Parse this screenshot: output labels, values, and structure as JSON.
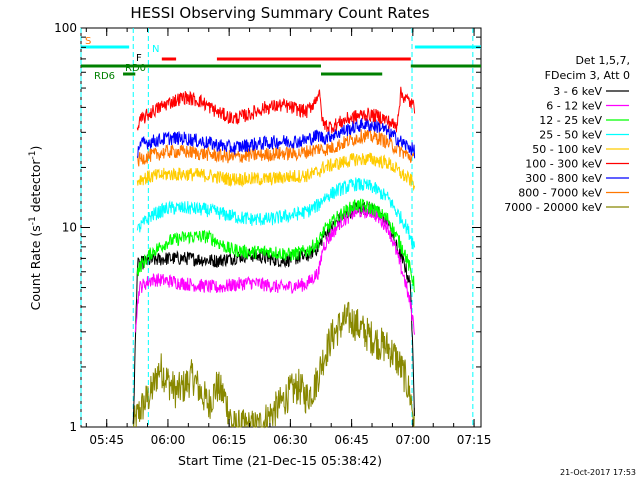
{
  "chart_data": {
    "type": "line",
    "title": "HESSI Observing Summary Count Rates",
    "xlabel": "Start Time (21-Dec-15 05:38:42)",
    "ylabel": "Count Rate (s⁻¹ detector⁻¹)",
    "ylabel_parts": {
      "main": "Count Rate (s",
      "exp1": "-1",
      "mid": " detector",
      "exp2": "-1",
      "end": ")"
    },
    "y_scale": "log",
    "xlim_minutes": [
      338.7,
      436.7
    ],
    "ylim": [
      1,
      100
    ],
    "x_ticks": [
      {
        "minute": 345,
        "label": "05:45"
      },
      {
        "minute": 360,
        "label": "06:00"
      },
      {
        "minute": 375,
        "label": "06:15"
      },
      {
        "minute": 390,
        "label": "06:30"
      },
      {
        "minute": 405,
        "label": "06:45"
      },
      {
        "minute": 420,
        "label": "07:00"
      },
      {
        "minute": 435,
        "label": "07:15"
      }
    ],
    "y_ticks": [
      {
        "value": 1,
        "label": "1"
      },
      {
        "value": 10,
        "label": "10"
      },
      {
        "value": 100,
        "label": "100"
      }
    ],
    "grid": false,
    "legend_placement": "right",
    "legend_header": [
      "Det 1,5,7,",
      "FDecim 3, Att 0"
    ],
    "series": [
      {
        "name": "3 - 6 keV",
        "color": "#000000",
        "x": [
          351.5,
          352.5,
          355,
          360,
          365,
          372,
          380,
          388,
          394,
          397,
          398,
          402,
          406,
          410,
          414,
          416,
          418,
          419.5,
          420.5
        ],
        "y": [
          1,
          6.5,
          6.8,
          7.0,
          7.0,
          6.8,
          7.3,
          6.8,
          7.2,
          8.0,
          9.0,
          11,
          12.5,
          12.5,
          10.5,
          8.0,
          6.5,
          5.0,
          1
        ]
      },
      {
        "name": "6 - 12 keV",
        "color": "#ff00ff",
        "x": [
          352,
          353,
          356,
          360,
          365,
          372,
          380,
          388,
          394,
          397,
          398,
          402,
          406,
          410,
          414,
          416,
          418,
          419.5,
          420.5
        ],
        "y": [
          3.2,
          5.0,
          5.5,
          5.4,
          5.2,
          5.0,
          5.3,
          5.0,
          5.2,
          6.0,
          8.0,
          10.5,
          12,
          12,
          10,
          7.5,
          5.5,
          4.0,
          3.0
        ]
      },
      {
        "name": "12 - 25 keV",
        "color": "#00ff00",
        "x": [
          352.5,
          353,
          356,
          360,
          365,
          370,
          375,
          380,
          385,
          390,
          394,
          397,
          398,
          402,
          406,
          410,
          414,
          416,
          418,
          419.5,
          420.5
        ],
        "y": [
          6.0,
          6.3,
          7.5,
          8.5,
          9.0,
          9.0,
          7.8,
          7.5,
          7.6,
          7.3,
          7.6,
          8.5,
          9.5,
          11.5,
          13,
          12.5,
          11,
          9.0,
          7.5,
          6.0,
          5.0
        ]
      },
      {
        "name": "25 - 50 keV",
        "color": "#00ffff",
        "x": [
          352.5,
          353,
          356,
          360,
          365,
          370,
          375,
          380,
          385,
          390,
          394,
          397,
          398,
          402,
          406,
          410,
          414,
          416,
          418,
          419.5,
          420.5
        ],
        "y": [
          9.5,
          10,
          11.5,
          12.5,
          12.5,
          12.2,
          11.5,
          11,
          11,
          11.5,
          12,
          13,
          14,
          15.5,
          16.5,
          16,
          14,
          12,
          10.5,
          9.0,
          8.0
        ]
      },
      {
        "name": "50 - 100 keV",
        "color": "#ffcc00",
        "x": [
          352.5,
          353,
          356,
          360,
          365,
          370,
          375,
          380,
          385,
          390,
          394,
          397,
          398,
          402,
          406,
          410,
          414,
          416,
          418,
          419.5,
          420.5
        ],
        "y": [
          17,
          17.5,
          18,
          18.5,
          18.5,
          18.2,
          17.5,
          17.5,
          17.5,
          18,
          18.2,
          19,
          20,
          21,
          22,
          22,
          21,
          19.5,
          18,
          17.2,
          16.5
        ]
      },
      {
        "name": "100 - 300 keV",
        "color": "#ff0000",
        "x": [
          352.5,
          353,
          356,
          360,
          364,
          368,
          372,
          376,
          380,
          384,
          388,
          392,
          394,
          396,
          397,
          398,
          400,
          404,
          408,
          412,
          414,
          416,
          417,
          418,
          419.5,
          420.5
        ],
        "y": [
          30,
          34,
          38,
          42,
          45,
          43,
          38,
          35,
          37,
          40,
          41,
          39,
          38,
          43,
          48,
          33,
          32,
          35,
          37,
          36,
          34,
          32,
          47,
          45,
          42,
          40
        ]
      },
      {
        "name": "300 - 800 keV",
        "color": "#0000ff",
        "x": [
          352.5,
          353,
          356,
          360,
          364,
          368,
          372,
          376,
          380,
          384,
          388,
          392,
          394,
          396,
          397,
          398,
          400,
          404,
          408,
          412,
          414,
          416,
          418,
          419.5,
          420.5
        ],
        "y": [
          24,
          26,
          27,
          28,
          28,
          27,
          26,
          25,
          26,
          26.5,
          27,
          27,
          27.5,
          28.5,
          29,
          28,
          29,
          31,
          33,
          32,
          30,
          28,
          26,
          25,
          24
        ]
      },
      {
        "name": "800 - 7000 keV",
        "color": "#ff7700",
        "x": [
          352.5,
          353,
          356,
          360,
          364,
          368,
          372,
          376,
          380,
          384,
          388,
          392,
          394,
          396,
          397,
          398,
          400,
          404,
          408,
          412,
          414,
          416,
          418,
          419.5,
          420.5
        ],
        "y": [
          21,
          22,
          23,
          24,
          24,
          23.5,
          23,
          22.5,
          23,
          23.2,
          23.5,
          23.5,
          24,
          24.5,
          25,
          24.5,
          25,
          27,
          29,
          28,
          26.5,
          25,
          23.5,
          22.5,
          22
        ]
      },
      {
        "name": "7000 - 20000 keV",
        "color": "#888800",
        "x": [
          351.5,
          353,
          356,
          358,
          360,
          362,
          364,
          366,
          368,
          370,
          372,
          374,
          376,
          382,
          386,
          390,
          392,
          394,
          396,
          398,
          400,
          402,
          404,
          406,
          408,
          410,
          412,
          414,
          416,
          418,
          419.5,
          420.5
        ],
        "y": [
          1,
          1.2,
          1.5,
          2.0,
          1.7,
          1.5,
          1.6,
          1.8,
          1.5,
          1.3,
          1.6,
          1.4,
          1.0,
          1.0,
          1.2,
          1.5,
          1.6,
          1.4,
          1.6,
          2.2,
          2.8,
          3.2,
          3.5,
          3.3,
          3.0,
          2.8,
          2.6,
          2.5,
          2.2,
          1.8,
          1.4,
          1
        ]
      }
    ],
    "flag_bars": [
      {
        "label": "S",
        "color": "#00ffff",
        "label_color": "#ff7700",
        "segments": [
          [
            338.7,
            350.5
          ],
          [
            420.5,
            436.7
          ]
        ]
      },
      {
        "label": "N",
        "color": "#00ffff",
        "label_color": "#00ffff",
        "segments": []
      },
      {
        "label": "F",
        "color": "#ff0000",
        "label_color": "#000000",
        "segments": [
          [
            358.5,
            362
          ],
          [
            372,
            419.5
          ]
        ]
      },
      {
        "label": "RD0",
        "color": "#008000",
        "label_color": "#008000",
        "segments": [
          [
            338.7,
            397.5
          ],
          [
            419.5,
            436.7
          ]
        ]
      },
      {
        "label": "RD6",
        "color": "#008000",
        "label_color": "#008000",
        "segments": [
          [
            349,
            352
          ],
          [
            397.5,
            412.5
          ]
        ]
      }
    ],
    "vertical_markers": [
      {
        "minute": 338.7,
        "color": "#00ffff"
      },
      {
        "minute": 351.5,
        "color": "#00ffff"
      },
      {
        "minute": 355.2,
        "color": "#00ffff"
      },
      {
        "minute": 419.8,
        "color": "#00ffff"
      },
      {
        "minute": 434.7,
        "color": "#00ffff"
      }
    ],
    "timestamp": "21-Oct-2017 17:53"
  }
}
